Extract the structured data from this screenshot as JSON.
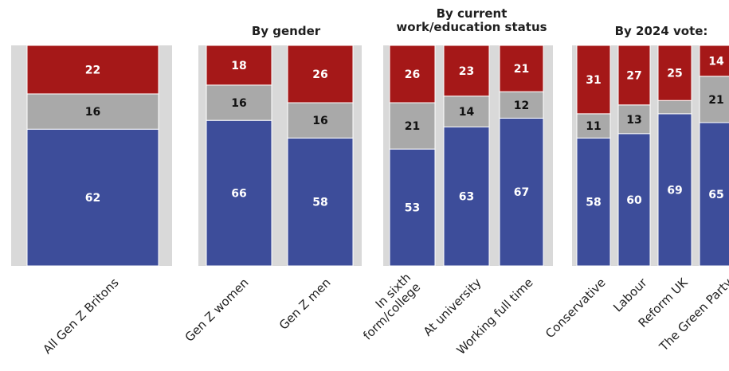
{
  "chart_data": {
    "type": "bar",
    "stacked": true,
    "ylim": [
      0,
      100
    ],
    "legend": "none",
    "grid": false,
    "colors": {
      "bottom": "#3d4d9a",
      "middle": "#a9a9a9",
      "top": "#a51818",
      "panel": "#d9d9d9"
    },
    "groups": [
      {
        "title": "",
        "bars": [
          {
            "label": "All Gen Z Britons",
            "values": [
              62,
              16,
              22
            ]
          }
        ]
      },
      {
        "title": "By gender",
        "bars": [
          {
            "label": "Gen Z women",
            "values": [
              66,
              16,
              18
            ]
          },
          {
            "label": "Gen Z men",
            "values": [
              58,
              16,
              26
            ]
          }
        ]
      },
      {
        "title": "By current\nwork/education status",
        "bars": [
          {
            "label": "In sixth\nform/college",
            "values": [
              53,
              21,
              26
            ]
          },
          {
            "label": "At university",
            "values": [
              63,
              14,
              23
            ]
          },
          {
            "label": "Working full time",
            "values": [
              67,
              12,
              21
            ]
          }
        ]
      },
      {
        "title": "By 2024 vote:",
        "bars": [
          {
            "label": "Conservative",
            "values": [
              58,
              11,
              31
            ]
          },
          {
            "label": "Labour",
            "values": [
              60,
              13,
              27
            ]
          },
          {
            "label": "Reform UK",
            "values": [
              69,
              6,
              25
            ],
            "hide_labels": [
              false,
              true,
              false
            ]
          },
          {
            "label": "The Green Party",
            "values": [
              65,
              21,
              14
            ]
          }
        ]
      }
    ]
  }
}
